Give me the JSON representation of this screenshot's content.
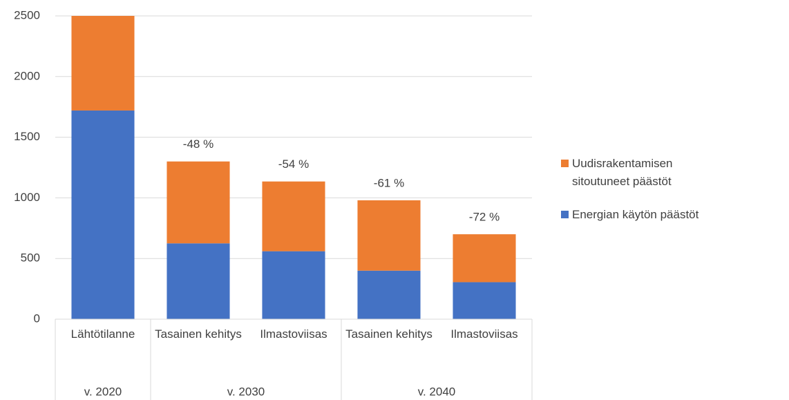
{
  "chart_data": {
    "type": "stacked_bar",
    "groups": [
      {
        "label": "v. 2020",
        "categories": [
          "Lähtötilanne"
        ]
      },
      {
        "label": "v. 2030",
        "categories": [
          "Tasainen kehitys",
          "Ilmastoviisas"
        ]
      },
      {
        "label": "v. 2040",
        "categories": [
          "Tasainen kehitys",
          "Ilmastoviisas"
        ]
      }
    ],
    "series": [
      {
        "name": "Energian käytön päästöt",
        "color": "#4472c4",
        "values": [
          1720,
          625,
          560,
          400,
          305
        ]
      },
      {
        "name": "Uudisrakentamisen sitoutuneet päästöt",
        "color": "#ed7d31",
        "values": [
          780,
          675,
          575,
          580,
          395
        ]
      }
    ],
    "annotations": [
      null,
      "-48 %",
      "-54 %",
      "-61 %",
      "-72 %"
    ],
    "ylim": [
      0,
      2500
    ],
    "yticks": [
      0,
      500,
      1000,
      1500,
      2000,
      2500
    ],
    "grid": true,
    "legend": "right"
  }
}
